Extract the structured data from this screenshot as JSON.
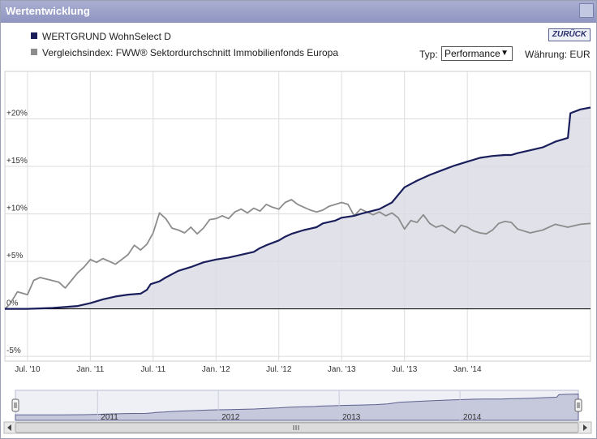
{
  "header": {
    "title": "Wertentwicklung"
  },
  "controls": {
    "back_label": "ZURÜCK",
    "type_label": "Typ:",
    "type_value": "Performance",
    "currency_label": "Währung: EUR"
  },
  "legend": [
    {
      "name": "WERTGRUND WohnSelect D",
      "color": "#1a1f5c"
    },
    {
      "name": "Vergleichsindex: FWW® Sektordurchschnitt Immobilienfonds Europa",
      "color": "#8c8c8c"
    }
  ],
  "navigator": {
    "labels": [
      "2011",
      "2012",
      "2013",
      "2014"
    ]
  },
  "chart_data": {
    "type": "line",
    "title": "Wertentwicklung",
    "xlabel": "",
    "ylabel": "",
    "ylim": [
      -5.5,
      25
    ],
    "yticks": [
      -5,
      0,
      5,
      10,
      15,
      20
    ],
    "ytick_labels": [
      "-5%",
      "0%",
      "+5%",
      "+10%",
      "+15%",
      "+20%"
    ],
    "xlim": [
      2010.32,
      2014.98
    ],
    "xticks": [
      2010.5,
      2011.0,
      2011.5,
      2012.0,
      2012.5,
      2013.0,
      2013.5,
      2014.0
    ],
    "xtick_labels": [
      "Jul. '10",
      "Jan. '11",
      "Jul. '11",
      "Jan. '12",
      "Jul. '12",
      "Jan. '13",
      "Jul. '13",
      "Jan. '14"
    ],
    "series": [
      {
        "name": "WERTGRUND WohnSelect D",
        "color": "#1a1f5c",
        "area": true,
        "x": [
          2010.32,
          2010.5,
          2010.7,
          2010.9,
          2011.0,
          2011.1,
          2011.2,
          2011.3,
          2011.4,
          2011.45,
          2011.48,
          2011.55,
          2011.6,
          2011.7,
          2011.8,
          2011.9,
          2012.0,
          2012.1,
          2012.2,
          2012.3,
          2012.35,
          2012.4,
          2012.5,
          2012.55,
          2012.6,
          2012.7,
          2012.8,
          2012.85,
          2012.95,
          2013.0,
          2013.1,
          2013.15,
          2013.3,
          2013.4,
          2013.45,
          2013.5,
          2013.6,
          2013.7,
          2013.8,
          2013.9,
          2014.0,
          2014.1,
          2014.2,
          2014.3,
          2014.35,
          2014.4,
          2014.5,
          2014.6,
          2014.7,
          2014.8,
          2014.82,
          2014.9,
          2014.98
        ],
        "y": [
          0.0,
          0.0,
          0.1,
          0.3,
          0.6,
          1.0,
          1.3,
          1.5,
          1.6,
          2.0,
          2.6,
          2.9,
          3.3,
          4.0,
          4.4,
          4.9,
          5.2,
          5.4,
          5.7,
          6.0,
          6.4,
          6.7,
          7.2,
          7.6,
          7.9,
          8.3,
          8.6,
          9.0,
          9.3,
          9.6,
          9.8,
          10.0,
          10.5,
          11.2,
          12.0,
          12.8,
          13.5,
          14.1,
          14.6,
          15.1,
          15.5,
          15.9,
          16.1,
          16.2,
          16.2,
          16.4,
          16.7,
          17.0,
          17.6,
          18.0,
          20.6,
          21.0,
          21.2
        ]
      },
      {
        "name": "Vergleichsindex: FWW® Sektordurchschnitt Immobilienfonds Europa",
        "color": "#8c8c8c",
        "area": false,
        "x": [
          2010.32,
          2010.36,
          2010.42,
          2010.5,
          2010.55,
          2010.6,
          2010.66,
          2010.75,
          2010.8,
          2010.85,
          2010.9,
          2010.95,
          2011.0,
          2011.05,
          2011.1,
          2011.15,
          2011.2,
          2011.25,
          2011.3,
          2011.35,
          2011.4,
          2011.45,
          2011.5,
          2011.55,
          2011.6,
          2011.65,
          2011.7,
          2011.75,
          2011.8,
          2011.85,
          2011.9,
          2011.95,
          2012.0,
          2012.05,
          2012.1,
          2012.15,
          2012.2,
          2012.25,
          2012.3,
          2012.35,
          2012.4,
          2012.45,
          2012.5,
          2012.55,
          2012.6,
          2012.65,
          2012.7,
          2012.75,
          2012.8,
          2012.85,
          2012.9,
          2012.95,
          2013.0,
          2013.05,
          2013.1,
          2013.15,
          2013.2,
          2013.25,
          2013.3,
          2013.35,
          2013.4,
          2013.45,
          2013.5,
          2013.55,
          2013.6,
          2013.65,
          2013.7,
          2013.75,
          2013.8,
          2013.85,
          2013.9,
          2013.95,
          2014.0,
          2014.05,
          2014.1,
          2014.15,
          2014.2,
          2014.25,
          2014.3,
          2014.35,
          2014.4,
          2014.5,
          2014.6,
          2014.7,
          2014.8,
          2014.9,
          2014.98
        ],
        "y": [
          0.0,
          0.5,
          1.8,
          1.5,
          3.0,
          3.3,
          3.1,
          2.8,
          2.2,
          3.0,
          3.8,
          4.4,
          5.2,
          4.9,
          5.3,
          5.0,
          4.7,
          5.2,
          5.7,
          6.7,
          6.2,
          6.8,
          8.0,
          10.1,
          9.5,
          8.5,
          8.3,
          8.0,
          8.6,
          7.9,
          8.5,
          9.4,
          9.5,
          9.8,
          9.5,
          10.2,
          10.5,
          10.1,
          10.6,
          10.3,
          11.0,
          10.7,
          10.5,
          11.2,
          11.5,
          11.0,
          10.7,
          10.4,
          10.2,
          10.4,
          10.8,
          11.0,
          11.2,
          11.0,
          9.8,
          10.5,
          10.2,
          9.9,
          10.2,
          9.8,
          10.1,
          9.6,
          8.4,
          9.3,
          9.1,
          9.9,
          9.0,
          8.6,
          8.8,
          8.4,
          8.0,
          8.8,
          8.6,
          8.2,
          8.0,
          7.9,
          8.3,
          9.0,
          9.2,
          9.1,
          8.4,
          8.0,
          8.3,
          8.9,
          8.6,
          8.9,
          9.0
        ]
      }
    ]
  }
}
